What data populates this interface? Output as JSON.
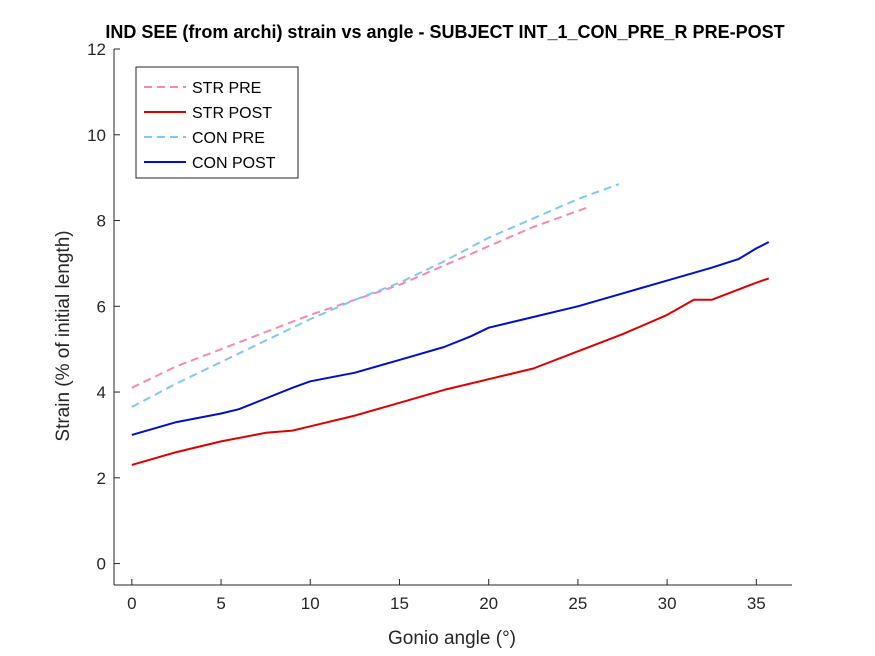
{
  "chart_data": {
    "type": "line",
    "title": "IND SEE (from archi) strain vs angle - SUBJECT INT_1_CON_PRE_R PRE-POST",
    "xlabel": "Gonio angle (°)",
    "ylabel": "Strain (% of initial length)",
    "xlim": [
      -1,
      37
    ],
    "ylim": [
      -0.5,
      12
    ],
    "xticks": [
      0,
      5,
      10,
      15,
      20,
      25,
      30,
      35
    ],
    "yticks": [
      0,
      2,
      4,
      6,
      8,
      10,
      12
    ],
    "grid": false,
    "legend": {
      "placement": "top-left"
    },
    "series": [
      {
        "name": "STR PRE",
        "color": "#f788b0",
        "dash": true,
        "x": [
          0,
          2.5,
          5,
          7.5,
          10,
          12.5,
          15,
          17.5,
          20,
          22.5,
          25.5
        ],
        "y": [
          4.1,
          4.6,
          5.0,
          5.4,
          5.8,
          6.15,
          6.5,
          6.95,
          7.4,
          7.85,
          8.3
        ]
      },
      {
        "name": "STR POST",
        "color": "#dd0000",
        "dash": false,
        "x": [
          0,
          2.5,
          5,
          7.5,
          9,
          10,
          12.5,
          15,
          17.5,
          20,
          22.5,
          25,
          27.5,
          30,
          31.5,
          32.5,
          35,
          35.7
        ],
        "y": [
          2.3,
          2.6,
          2.85,
          3.05,
          3.1,
          3.2,
          3.45,
          3.75,
          4.05,
          4.3,
          4.55,
          4.95,
          5.35,
          5.8,
          6.15,
          6.15,
          6.55,
          6.65
        ]
      },
      {
        "name": "CON PRE",
        "color": "#7fc7f5",
        "dash": true,
        "x": [
          0,
          2.5,
          5,
          7.5,
          10,
          12.5,
          15,
          17.5,
          20,
          22.5,
          25,
          27.3
        ],
        "y": [
          3.65,
          4.2,
          4.7,
          5.2,
          5.7,
          6.15,
          6.55,
          7.05,
          7.6,
          8.05,
          8.5,
          8.85
        ]
      },
      {
        "name": "CON POST",
        "color": "#0010c8",
        "dash": false,
        "x": [
          0,
          2.5,
          5,
          6,
          7.5,
          9,
          10,
          12.5,
          15,
          17.5,
          19,
          20,
          22.5,
          25,
          27.5,
          30,
          32.5,
          34,
          35,
          35.7
        ],
        "y": [
          3.0,
          3.3,
          3.5,
          3.6,
          3.85,
          4.1,
          4.25,
          4.45,
          4.75,
          5.05,
          5.3,
          5.5,
          5.75,
          6.0,
          6.3,
          6.6,
          6.9,
          7.1,
          7.35,
          7.5
        ]
      }
    ]
  }
}
